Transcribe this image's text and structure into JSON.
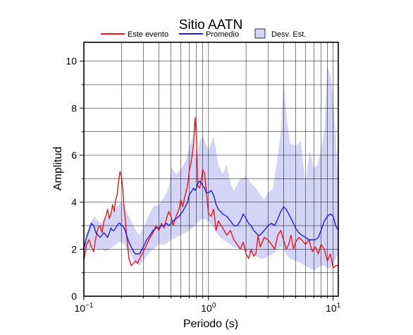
{
  "chart_data": {
    "type": "line",
    "title": "Sitio AATN",
    "xlabel": "Periodo (s)",
    "ylabel": "Amplitud",
    "x_scale": "log",
    "xlim": [
      0.1,
      11
    ],
    "ylim": [
      0,
      10.8
    ],
    "grid": true,
    "legend_position": "top",
    "x_tick_labels": [
      {
        "value": 0.1,
        "base": "10",
        "exp": "−1"
      },
      {
        "value": 1,
        "base": "10",
        "exp": "0"
      },
      {
        "value": 10,
        "base": "10",
        "exp": "1"
      }
    ],
    "y_ticks": [
      0,
      2,
      4,
      6,
      8,
      10
    ],
    "legend": [
      {
        "label": "Este evento",
        "kind": "line",
        "color": "#e8161b"
      },
      {
        "label": "Promedio",
        "kind": "line",
        "color": "#1c1fd6"
      },
      {
        "label": "Desv. Est.",
        "kind": "band",
        "color": "#d4d4f7"
      }
    ],
    "series": [
      {
        "name": "Este evento",
        "color": "#e8161b",
        "x": [
          0.1,
          0.105,
          0.11,
          0.115,
          0.12,
          0.125,
          0.13,
          0.135,
          0.14,
          0.145,
          0.15,
          0.155,
          0.16,
          0.165,
          0.17,
          0.175,
          0.18,
          0.185,
          0.19,
          0.195,
          0.2,
          0.205,
          0.21,
          0.215,
          0.22,
          0.23,
          0.24,
          0.25,
          0.26,
          0.27,
          0.28,
          0.3,
          0.32,
          0.34,
          0.36,
          0.38,
          0.4,
          0.42,
          0.44,
          0.46,
          0.48,
          0.5,
          0.52,
          0.55,
          0.58,
          0.6,
          0.62,
          0.65,
          0.68,
          0.7,
          0.72,
          0.74,
          0.76,
          0.78,
          0.8,
          0.82,
          0.85,
          0.88,
          0.9,
          0.93,
          0.96,
          1.0,
          1.05,
          1.1,
          1.15,
          1.2,
          1.3,
          1.4,
          1.5,
          1.6,
          1.7,
          1.8,
          1.9,
          2.0,
          2.1,
          2.2,
          2.3,
          2.4,
          2.5,
          2.6,
          2.7,
          2.8,
          3.0,
          3.2,
          3.4,
          3.6,
          3.8,
          4.0,
          4.2,
          4.4,
          4.6,
          4.8,
          5.0,
          5.3,
          5.6,
          6.0,
          6.4,
          6.8,
          7.2,
          7.6,
          8.0,
          8.5,
          9.0,
          9.5,
          10.0,
          10.5,
          11.0
        ],
        "y": [
          1.5,
          2.2,
          2.4,
          2.1,
          1.9,
          2.5,
          2.9,
          3.0,
          2.7,
          3.2,
          3.4,
          3.7,
          3.3,
          3.5,
          3.9,
          3.6,
          4.1,
          4.3,
          4.9,
          5.3,
          5.1,
          4.6,
          3.8,
          3.3,
          2.6,
          1.6,
          1.3,
          1.4,
          1.5,
          1.4,
          1.6,
          1.9,
          2.2,
          2.5,
          2.7,
          3.0,
          2.8,
          3.1,
          2.9,
          3.3,
          3.6,
          3.4,
          3.0,
          3.4,
          3.7,
          4.1,
          3.8,
          4.3,
          4.7,
          5.3,
          5.6,
          6.0,
          6.5,
          7.6,
          6.8,
          4.7,
          4.6,
          5.0,
          5.4,
          5.2,
          4.5,
          3.5,
          3.4,
          3.7,
          2.8,
          3.2,
          2.9,
          2.6,
          2.8,
          2.4,
          2.2,
          2.0,
          2.3,
          1.8,
          1.6,
          2.0,
          1.7,
          1.8,
          2.6,
          2.1,
          2.3,
          2.5,
          2.4,
          2.2,
          2.0,
          2.6,
          2.8,
          2.4,
          2.0,
          2.2,
          2.6,
          2.0,
          2.3,
          2.5,
          2.4,
          2.2,
          2.4,
          1.9,
          2.1,
          1.8,
          2.2,
          2.0,
          1.5,
          1.8,
          1.2,
          1.3,
          1.3
        ]
      },
      {
        "name": "Promedio",
        "color": "#1c1fd6",
        "x": [
          0.1,
          0.105,
          0.11,
          0.115,
          0.12,
          0.125,
          0.13,
          0.135,
          0.14,
          0.145,
          0.15,
          0.155,
          0.16,
          0.165,
          0.17,
          0.175,
          0.18,
          0.185,
          0.19,
          0.195,
          0.2,
          0.205,
          0.21,
          0.215,
          0.22,
          0.23,
          0.24,
          0.25,
          0.26,
          0.27,
          0.28,
          0.3,
          0.32,
          0.34,
          0.36,
          0.38,
          0.4,
          0.42,
          0.44,
          0.46,
          0.48,
          0.5,
          0.52,
          0.55,
          0.58,
          0.6,
          0.62,
          0.65,
          0.68,
          0.7,
          0.72,
          0.74,
          0.76,
          0.78,
          0.8,
          0.82,
          0.85,
          0.88,
          0.9,
          0.93,
          0.96,
          1.0,
          1.05,
          1.1,
          1.15,
          1.2,
          1.3,
          1.4,
          1.5,
          1.6,
          1.7,
          1.8,
          1.9,
          2.0,
          2.1,
          2.2,
          2.3,
          2.4,
          2.5,
          2.6,
          2.7,
          2.8,
          3.0,
          3.2,
          3.4,
          3.6,
          3.8,
          4.0,
          4.2,
          4.4,
          4.6,
          4.8,
          5.0,
          5.3,
          5.6,
          6.0,
          6.4,
          6.8,
          7.2,
          7.6,
          8.0,
          8.5,
          9.0,
          9.5,
          10.0,
          10.5,
          11.0
        ],
        "y": [
          2.0,
          2.5,
          2.8,
          3.1,
          3.0,
          2.7,
          2.6,
          2.5,
          2.6,
          2.7,
          2.6,
          2.5,
          2.7,
          2.9,
          2.8,
          2.8,
          2.9,
          3.0,
          3.1,
          3.1,
          3.0,
          3.0,
          2.9,
          2.8,
          2.6,
          2.3,
          2.1,
          1.9,
          1.8,
          1.8,
          1.8,
          2.1,
          2.4,
          2.6,
          2.8,
          2.9,
          2.9,
          3.0,
          3.0,
          3.1,
          3.0,
          3.1,
          3.2,
          3.3,
          3.4,
          3.5,
          3.6,
          3.8,
          4.0,
          4.3,
          4.4,
          4.5,
          4.6,
          4.5,
          4.6,
          4.8,
          4.9,
          4.8,
          4.7,
          4.6,
          4.4,
          4.4,
          4.5,
          4.3,
          3.9,
          3.7,
          3.5,
          3.4,
          3.2,
          3.0,
          3.0,
          3.2,
          3.5,
          3.3,
          3.1,
          3.0,
          2.8,
          2.7,
          2.6,
          2.6,
          2.7,
          2.8,
          3.0,
          3.1,
          3.0,
          3.3,
          3.6,
          3.8,
          3.7,
          3.5,
          3.3,
          3.1,
          2.9,
          2.7,
          2.6,
          2.5,
          2.4,
          2.4,
          2.4,
          2.5,
          2.8,
          3.2,
          3.4,
          3.5,
          3.4,
          3.0,
          2.8
        ]
      }
    ],
    "band": {
      "name": "Desv. Est.",
      "color": "#d4d4f7",
      "x": [
        0.1,
        0.11,
        0.12,
        0.13,
        0.14,
        0.15,
        0.16,
        0.17,
        0.18,
        0.19,
        0.2,
        0.21,
        0.22,
        0.24,
        0.26,
        0.28,
        0.3,
        0.33,
        0.36,
        0.4,
        0.44,
        0.48,
        0.5,
        0.55,
        0.6,
        0.65,
        0.7,
        0.75,
        0.8,
        0.85,
        0.9,
        1.0,
        1.1,
        1.2,
        1.3,
        1.4,
        1.5,
        1.6,
        1.8,
        2.0,
        2.2,
        2.4,
        2.6,
        2.8,
        3.0,
        3.3,
        3.6,
        3.8,
        4.0,
        4.2,
        4.5,
        5.0,
        5.5,
        6.0,
        6.5,
        7.0,
        7.5,
        8.0,
        8.5,
        9.0,
        9.5,
        10.0,
        10.5,
        11.0
      ],
      "upper": [
        2.3,
        3.0,
        3.4,
        3.2,
        3.1,
        3.3,
        3.5,
        3.6,
        3.7,
        3.9,
        4.0,
        3.9,
        3.6,
        3.2,
        2.8,
        2.6,
        2.9,
        3.4,
        3.8,
        3.9,
        4.2,
        4.6,
        5.5,
        5.2,
        5.4,
        5.7,
        6.3,
        6.8,
        5.8,
        6.6,
        6.8,
        6.2,
        6.8,
        5.6,
        5.2,
        5.6,
        4.8,
        4.5,
        5.0,
        5.1,
        4.8,
        4.6,
        4.3,
        4.1,
        4.4,
        4.6,
        6.0,
        7.0,
        9.2,
        7.8,
        6.5,
        6.4,
        6.6,
        4.8,
        6.2,
        5.4,
        5.6,
        6.2,
        7.0,
        9.8,
        9.4,
        8.5,
        6.8,
        4.8
      ],
      "lower": [
        1.8,
        2.0,
        2.1,
        2.0,
        2.0,
        1.9,
        2.0,
        2.1,
        2.2,
        2.3,
        2.3,
        2.2,
        2.0,
        1.7,
        1.4,
        1.3,
        1.5,
        1.8,
        2.0,
        2.2,
        2.2,
        2.3,
        2.4,
        2.5,
        2.6,
        2.7,
        2.8,
        2.9,
        3.1,
        3.2,
        3.3,
        3.2,
        2.9,
        2.6,
        2.4,
        2.3,
        2.2,
        2.1,
        2.0,
        1.9,
        1.8,
        1.7,
        1.6,
        1.6,
        1.7,
        1.8,
        2.0,
        2.1,
        2.0,
        1.8,
        1.6,
        1.5,
        1.4,
        1.3,
        1.2,
        1.1,
        1.2,
        1.3,
        1.3,
        1.2,
        1.2,
        1.4,
        1.6,
        1.8
      ]
    }
  }
}
